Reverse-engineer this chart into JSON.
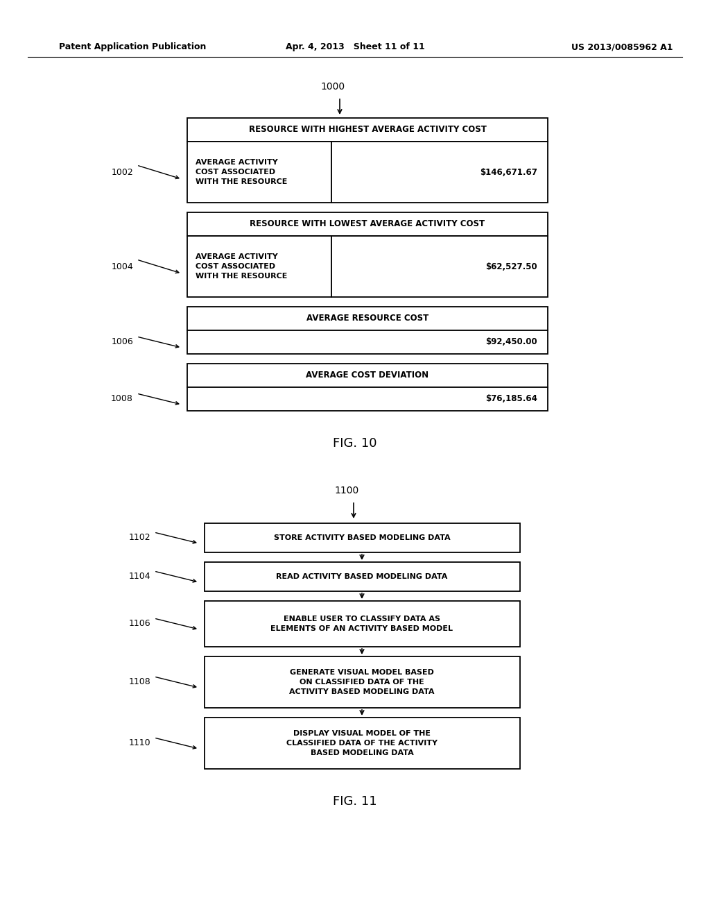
{
  "header_left": "Patent Application Publication",
  "header_mid": "Apr. 4, 2013   Sheet 11 of 11",
  "header_right": "US 2013/0085962 A1",
  "fig10_label": "1000",
  "fig10_caption": "FIG. 10",
  "fig11_label": "1100",
  "fig11_caption": "FIG. 11",
  "fig10_sections": [
    {
      "id": "1002",
      "header": "RESOURCE WITH HIGHEST AVERAGE ACTIVITY COST",
      "left_label": "AVERAGE ACTIVITY\nCOST ASSOCIATED\nWITH THE RESOURCE",
      "right_value": "$146,671.67",
      "has_subrow": true
    },
    {
      "id": "1004",
      "header": "RESOURCE WITH LOWEST AVERAGE ACTIVITY COST",
      "left_label": "AVERAGE ACTIVITY\nCOST ASSOCIATED\nWITH THE RESOURCE",
      "right_value": "$62,527.50",
      "has_subrow": true
    },
    {
      "id": "1006",
      "header": "AVERAGE RESOURCE COST",
      "left_label": "",
      "right_value": "$92,450.00",
      "has_subrow": false
    },
    {
      "id": "1008",
      "header": "AVERAGE COST DEVIATION",
      "left_label": "",
      "right_value": "$76,185.64",
      "has_subrow": false
    }
  ],
  "fig11_steps": [
    {
      "id": "1102",
      "text": "STORE ACTIVITY BASED MODELING DATA"
    },
    {
      "id": "1104",
      "text": "READ ACTIVITY BASED MODELING DATA"
    },
    {
      "id": "1106",
      "text": "ENABLE USER TO CLASSIFY DATA AS\nELEMENTS OF AN ACTIVITY BASED MODEL"
    },
    {
      "id": "1108",
      "text": "GENERATE VISUAL MODEL BASED\nON CLASSIFIED DATA OF THE\nACTIVITY BASED MODELING DATA"
    },
    {
      "id": "1110",
      "text": "DISPLAY VISUAL MODEL OF THE\nCLASSIFIED DATA OF THE ACTIVITY\nBASED MODELING DATA"
    }
  ],
  "bg_color": "#ffffff",
  "box_edge_color": "#000000",
  "text_color": "#000000",
  "font_family": "DejaVu Sans"
}
